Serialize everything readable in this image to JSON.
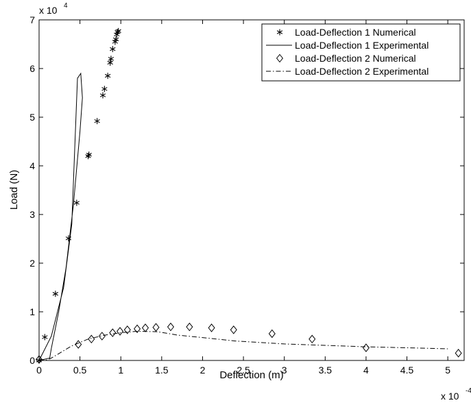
{
  "chart_data": {
    "type": "scatter",
    "xlabel": "Deflection (m)",
    "ylabel": "Load (N)",
    "x_multiplier": {
      "base": "x 10",
      "exp": "-4"
    },
    "y_multiplier": {
      "base": "x 10",
      "exp": "4"
    },
    "xlim": [
      0,
      5.2
    ],
    "ylim": [
      0,
      7
    ],
    "xticks": [
      0,
      0.5,
      1,
      1.5,
      2,
      2.5,
      3,
      3.5,
      4,
      4.5,
      5
    ],
    "xtick_labels": [
      "0",
      "0.5",
      "1",
      "1.5",
      "2",
      "2.5",
      "3",
      "3.5",
      "4",
      "4.5",
      "5"
    ],
    "yticks": [
      0,
      1,
      2,
      3,
      4,
      5,
      6,
      7
    ],
    "ytick_labels": [
      "0",
      "1",
      "2",
      "3",
      "4",
      "5",
      "6",
      "7"
    ],
    "grid": false,
    "legend_position": "top-right",
    "series": [
      {
        "name": "Load-Deflection 1 Numerical",
        "style": "marker-asterisk",
        "points": [
          [
            0,
            0
          ],
          [
            0.07,
            0.48
          ],
          [
            0.2,
            1.37
          ],
          [
            0.36,
            2.51
          ],
          [
            0.46,
            3.24
          ],
          [
            0.6,
            4.2
          ],
          [
            0.61,
            4.23
          ],
          [
            0.71,
            4.92
          ],
          [
            0.78,
            5.45
          ],
          [
            0.8,
            5.58
          ],
          [
            0.84,
            5.85
          ],
          [
            0.87,
            6.12
          ],
          [
            0.88,
            6.2
          ],
          [
            0.9,
            6.4
          ],
          [
            0.93,
            6.55
          ],
          [
            0.94,
            6.6
          ],
          [
            0.95,
            6.7
          ],
          [
            0.96,
            6.75
          ],
          [
            0.97,
            6.77
          ]
        ]
      },
      {
        "name": "Load-Deflection 1 Experimental",
        "style": "solid",
        "points": [
          [
            0,
            0
          ],
          [
            0.15,
            0.5
          ],
          [
            0.3,
            1.5
          ],
          [
            0.4,
            2.8
          ],
          [
            0.47,
            5.8
          ],
          [
            0.51,
            5.9
          ],
          [
            0.53,
            5.4
          ],
          [
            0.5,
            4.7
          ],
          [
            0.42,
            3.2
          ],
          [
            0.33,
            1.9
          ],
          [
            0.24,
            1.0
          ],
          [
            0.15,
            0.25
          ],
          [
            0.13,
            0.05
          ],
          [
            0,
            0
          ]
        ]
      },
      {
        "name": "Load-Deflection 2 Numerical",
        "style": "marker-diamond",
        "points": [
          [
            0,
            0.02
          ],
          [
            0.48,
            0.33
          ],
          [
            0.64,
            0.44
          ],
          [
            0.77,
            0.5
          ],
          [
            0.9,
            0.57
          ],
          [
            0.99,
            0.6
          ],
          [
            1.08,
            0.63
          ],
          [
            1.2,
            0.65
          ],
          [
            1.3,
            0.67
          ],
          [
            1.43,
            0.68
          ],
          [
            1.61,
            0.69
          ],
          [
            1.84,
            0.69
          ],
          [
            2.11,
            0.67
          ],
          [
            2.38,
            0.63
          ],
          [
            2.85,
            0.55
          ],
          [
            3.34,
            0.44
          ],
          [
            4.0,
            0.26
          ],
          [
            5.13,
            0.15
          ]
        ]
      },
      {
        "name": "Load-Deflection 2 Experimental",
        "style": "dash-dot",
        "points": [
          [
            0,
            0
          ],
          [
            0.1,
            0.01
          ],
          [
            0.15,
            0.05
          ],
          [
            0.25,
            0.15
          ],
          [
            0.4,
            0.3
          ],
          [
            0.6,
            0.44
          ],
          [
            0.8,
            0.52
          ],
          [
            1.0,
            0.57
          ],
          [
            1.2,
            0.6
          ],
          [
            1.45,
            0.59
          ],
          [
            1.7,
            0.52
          ],
          [
            2.0,
            0.47
          ],
          [
            2.4,
            0.4
          ],
          [
            3.0,
            0.34
          ],
          [
            3.5,
            0.31
          ],
          [
            4.0,
            0.28
          ],
          [
            4.5,
            0.26
          ],
          [
            5.0,
            0.24
          ]
        ]
      }
    ]
  }
}
